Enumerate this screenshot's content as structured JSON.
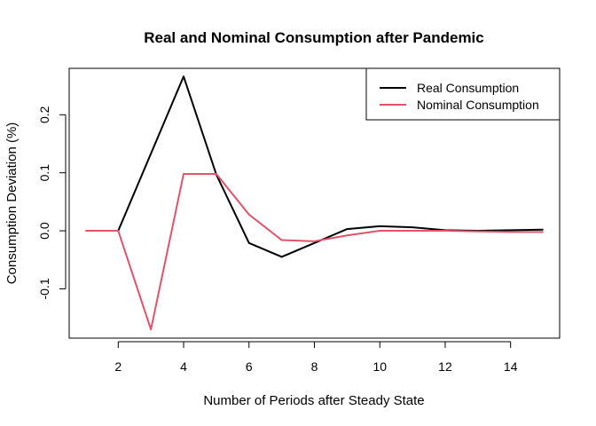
{
  "chart_data": {
    "type": "line",
    "title": "Real and Nominal Consumption after Pandemic",
    "xlabel": "Number of Periods after Steady State",
    "ylabel": "Consumption Deviation (%)",
    "xlim": [
      0.5,
      15.5
    ],
    "ylim": [
      -0.185,
      0.28
    ],
    "x_ticks": [
      2,
      4,
      6,
      8,
      10,
      12,
      14
    ],
    "y_ticks": [
      -0.1,
      0.0,
      0.1,
      0.2
    ],
    "y_tick_labels": [
      "-0.1",
      "0.0",
      "0.1",
      "0.2"
    ],
    "x": [
      1,
      2,
      3,
      4,
      5,
      6,
      7,
      8,
      9,
      10,
      11,
      12,
      13,
      14,
      15
    ],
    "series": [
      {
        "name": "Real Consumption",
        "color": "#000000",
        "values": [
          0.0,
          0.0,
          0.133,
          0.266,
          0.097,
          -0.021,
          -0.045,
          -0.021,
          0.003,
          0.008,
          0.006,
          0.001,
          0.0,
          0.001,
          0.002
        ]
      },
      {
        "name": "Nominal Consumption",
        "color": "#DF536B",
        "values": [
          0.0,
          0.0,
          -0.17,
          0.098,
          0.098,
          0.028,
          -0.016,
          -0.018,
          -0.008,
          0.0,
          0.0,
          0.0,
          -0.001,
          -0.002,
          -0.002
        ]
      }
    ],
    "grid": false,
    "legend_position": "top-right"
  }
}
